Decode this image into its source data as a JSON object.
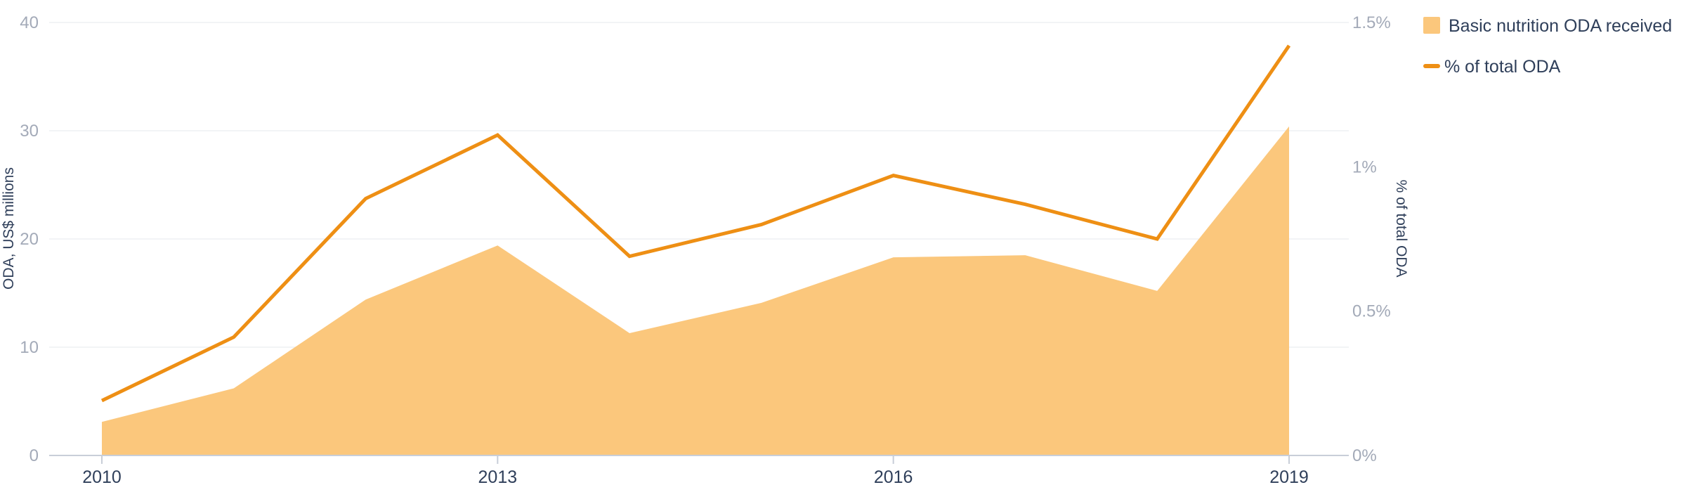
{
  "chart_data": {
    "type": "area",
    "x": [
      2010,
      2011,
      2012,
      2013,
      2014,
      2015,
      2016,
      2017,
      2018,
      2019
    ],
    "x_tick_labels": [
      "2010",
      "2013",
      "2016",
      "2019"
    ],
    "x_ticks": [
      2010,
      2013,
      2016,
      2019
    ],
    "xlim": [
      2010,
      2019
    ],
    "ylabel": "ODA, US$ millions",
    "ylim": [
      0,
      40
    ],
    "y_ticks": [
      0,
      10,
      20,
      30,
      40
    ],
    "y_tick_labels": [
      "0",
      "10",
      "20",
      "30",
      "40"
    ],
    "y2label": "% of total ODA",
    "y2lim": [
      0,
      1.5
    ],
    "y2_ticks": [
      0,
      0.5,
      1,
      1.5
    ],
    "y2_tick_labels": [
      "0%",
      "0.5%",
      "1%",
      "1.5%"
    ],
    "grid": true,
    "legend_position": "top-right",
    "series": [
      {
        "name": "Basic nutrition ODA received",
        "type": "area",
        "axis": "left",
        "color": "#fbc77c",
        "values": [
          3.1,
          6.2,
          14.4,
          19.4,
          11.3,
          14.1,
          18.3,
          18.5,
          15.2,
          30.4
        ]
      },
      {
        "name": "% of total ODA",
        "type": "line",
        "axis": "right",
        "color": "#ee8f14",
        "values": [
          0.19,
          0.41,
          0.89,
          1.11,
          0.69,
          0.8,
          0.97,
          0.87,
          0.75,
          1.42
        ]
      }
    ]
  },
  "colors": {
    "area_fill": "#fbc77c",
    "line": "#ee8f14",
    "gridline": "#eef0f3",
    "baseline": "#c8ced8",
    "left_tick_text": "#a3aab8",
    "x_tick_text": "#2f3f5a"
  }
}
